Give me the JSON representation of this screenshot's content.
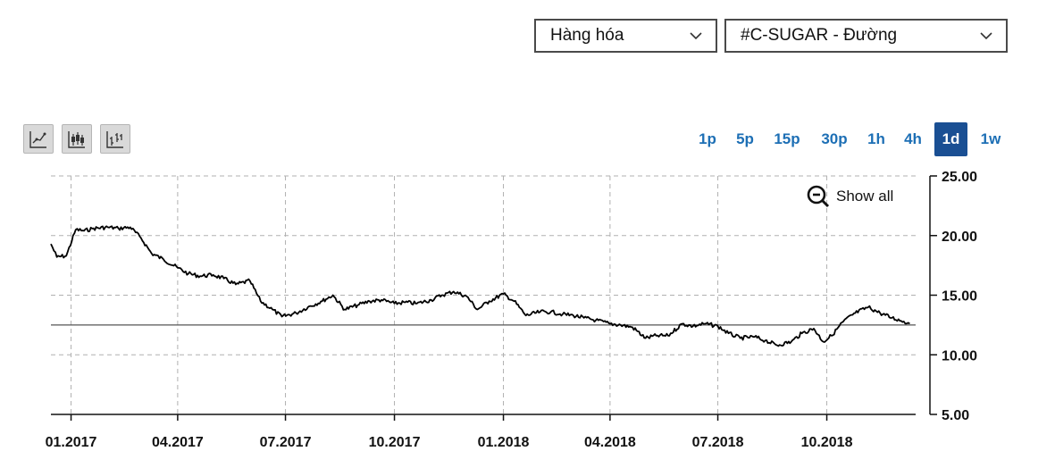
{
  "selectors": {
    "category": "Hàng hóa",
    "symbol": "#C-SUGAR - Đường"
  },
  "toolbar": {
    "chart_types": [
      {
        "icon": "line-chart-icon"
      },
      {
        "icon": "candlestick-icon"
      },
      {
        "icon": "ohlc-bars-icon"
      }
    ],
    "timeframes": [
      "1p",
      "5p",
      "15p",
      "30p",
      "1h",
      "4h",
      "1d",
      "1w"
    ],
    "active_timeframe": "1d",
    "show_all_label": "Show all",
    "show_all_icon": "zoom-out-icon"
  },
  "colors": {
    "line": "#000000",
    "active_tab": "#1a4f93",
    "tab_text": "#1d6fb5",
    "grid": "#b0b0b0"
  },
  "chart_data": {
    "type": "line",
    "x_tick_labels": [
      "01.2017",
      "04.2017",
      "07.2017",
      "10.2017",
      "01.2018",
      "04.2018",
      "07.2018",
      "10.2018"
    ],
    "y_tick_labels": [
      "25.00",
      "20.00",
      "15.00",
      "10.00",
      "5.00"
    ],
    "ylim": [
      5,
      25
    ],
    "xlim": [
      "2016-12-15",
      "2018-12-15"
    ],
    "grid": true,
    "reference_line": 12.5,
    "series": [
      {
        "x": [
          "2016-12-15",
          "2016-12-20",
          "2016-12-28",
          "2017-01-05",
          "2017-01-12",
          "2017-01-20",
          "2017-02-01",
          "2017-02-10",
          "2017-02-20",
          "2017-03-01",
          "2017-03-10",
          "2017-03-20",
          "2017-04-01",
          "2017-04-10",
          "2017-04-20",
          "2017-05-01",
          "2017-05-10",
          "2017-05-20",
          "2017-06-01",
          "2017-06-10",
          "2017-06-20",
          "2017-06-28",
          "2017-07-10",
          "2017-07-20",
          "2017-08-01",
          "2017-08-10",
          "2017-08-20",
          "2017-09-01",
          "2017-09-10",
          "2017-09-20",
          "2017-10-01",
          "2017-10-10",
          "2017-10-20",
          "2017-11-01",
          "2017-11-10",
          "2017-11-20",
          "2017-12-01",
          "2017-12-10",
          "2017-12-20",
          "2018-01-01",
          "2018-01-10",
          "2018-01-20",
          "2018-02-01",
          "2018-02-10",
          "2018-02-20",
          "2018-03-01",
          "2018-03-10",
          "2018-03-20",
          "2018-04-01",
          "2018-04-10",
          "2018-04-20",
          "2018-05-01",
          "2018-05-10",
          "2018-05-20",
          "2018-06-01",
          "2018-06-10",
          "2018-06-20",
          "2018-07-01",
          "2018-07-10",
          "2018-07-20",
          "2018-08-01",
          "2018-08-10",
          "2018-08-20",
          "2018-09-01",
          "2018-09-10",
          "2018-09-20",
          "2018-09-28",
          "2018-10-05",
          "2018-10-15",
          "2018-10-25",
          "2018-11-05",
          "2018-11-15",
          "2018-11-25",
          "2018-12-05",
          "2018-12-10"
        ],
        "y": [
          19.3,
          18.2,
          18.3,
          20.5,
          20.4,
          20.6,
          20.7,
          20.6,
          20.7,
          19.8,
          18.5,
          18.0,
          17.3,
          16.8,
          16.6,
          16.7,
          16.4,
          15.9,
          16.2,
          14.5,
          13.8,
          13.2,
          13.5,
          14.0,
          14.5,
          15.0,
          13.8,
          14.2,
          14.5,
          14.6,
          14.3,
          14.4,
          14.3,
          14.6,
          15.0,
          15.3,
          14.9,
          13.8,
          14.5,
          15.1,
          14.5,
          13.3,
          13.6,
          13.6,
          13.4,
          13.3,
          13.1,
          12.9,
          12.6,
          12.5,
          12.3,
          11.4,
          11.6,
          11.6,
          12.6,
          12.4,
          12.6,
          12.4,
          11.8,
          11.4,
          11.5,
          11.2,
          10.8,
          11.1,
          11.8,
          12.2,
          11.1,
          11.6,
          12.8,
          13.5,
          14.0,
          13.5,
          13.1,
          12.8,
          12.6
        ]
      }
    ]
  }
}
